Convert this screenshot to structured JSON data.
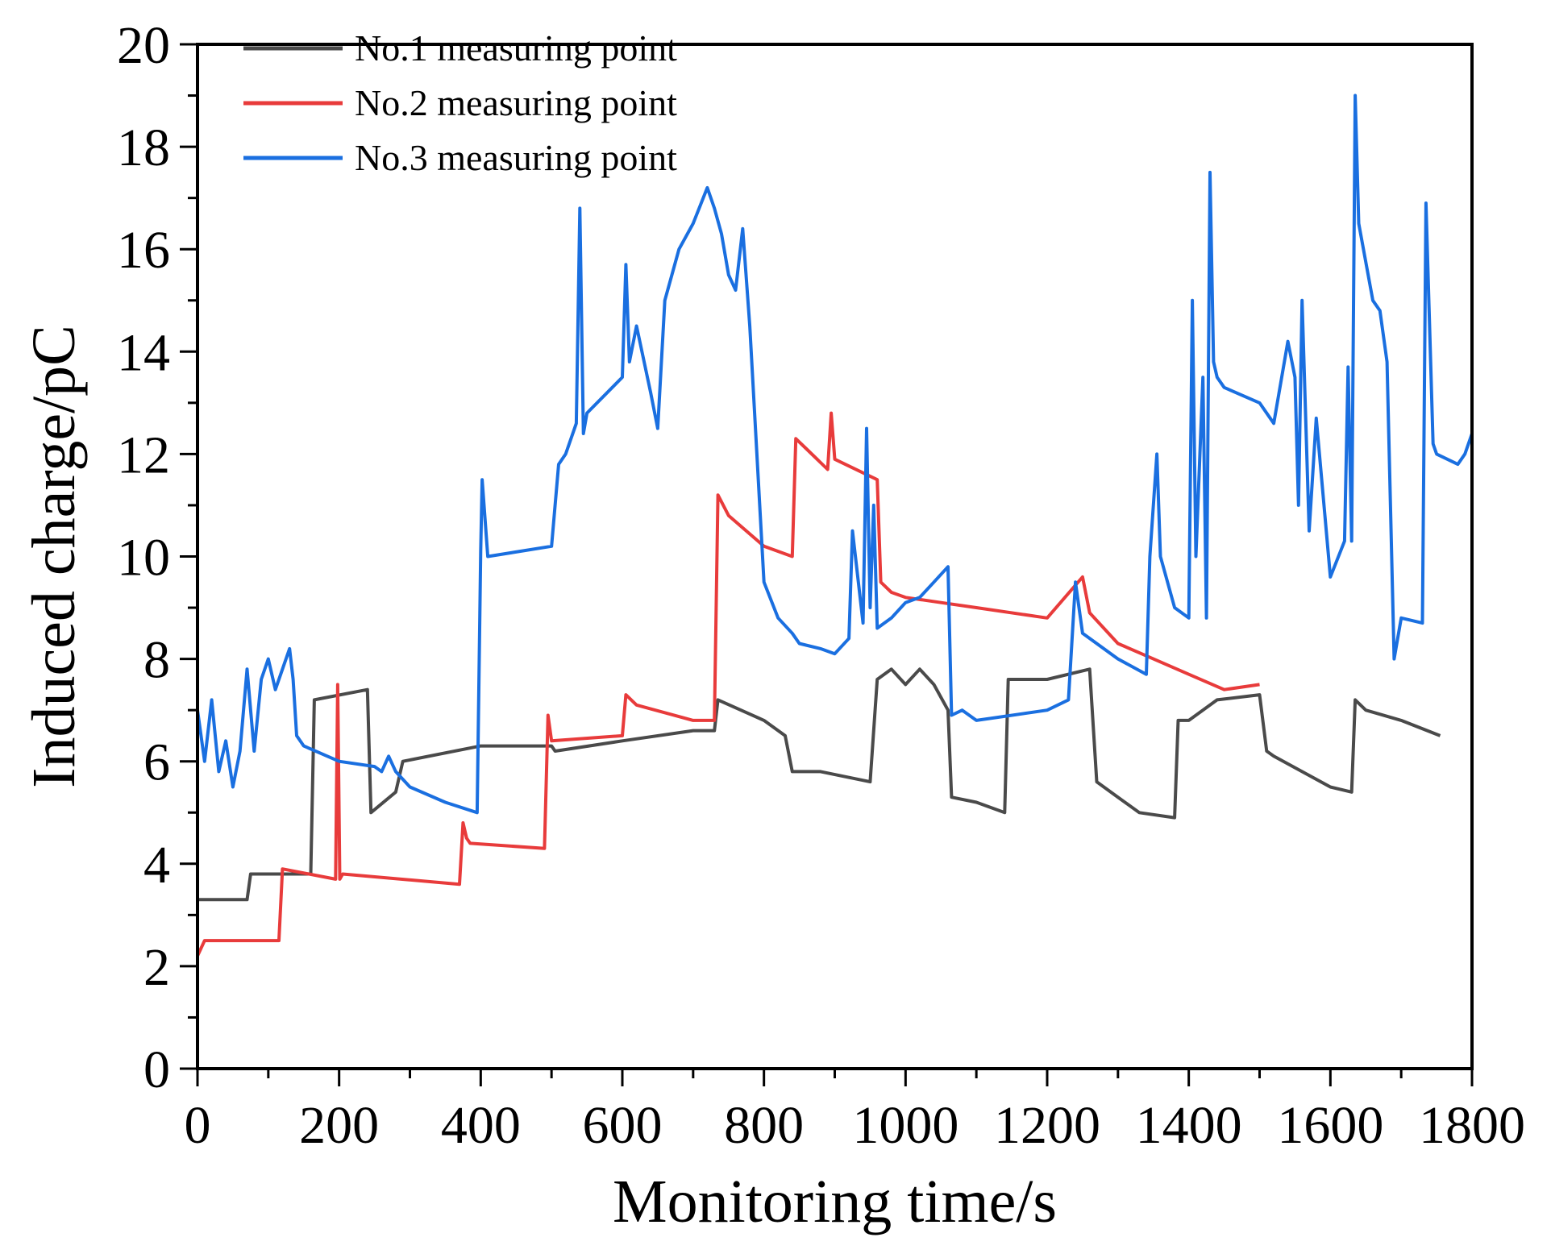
{
  "chart_data": {
    "type": "line",
    "title": "",
    "xlabel": "Monitoring time/s",
    "ylabel": "Induced charge/pC",
    "xlim": [
      0,
      1800
    ],
    "ylim": [
      0,
      20
    ],
    "x_ticks": [
      0,
      200,
      400,
      600,
      800,
      1000,
      1200,
      1400,
      1600,
      1800
    ],
    "y_ticks": [
      0,
      2,
      4,
      6,
      8,
      10,
      12,
      14,
      16,
      18,
      20
    ],
    "x_tick_labels": [
      "0",
      "200",
      "400",
      "600",
      "800",
      "1000",
      "1200",
      "1400",
      "1600",
      "1800"
    ],
    "y_tick_labels": [
      "0",
      "2",
      "4",
      "6",
      "8",
      "10",
      "12",
      "14",
      "16",
      "18",
      "20"
    ],
    "grid": false,
    "legend_position": "top-left",
    "series": [
      {
        "name": "No.1 measuring point",
        "color": "#4a4a4a",
        "x": [
          0,
          70,
          75,
          160,
          165,
          240,
          245,
          280,
          290,
          400,
          405,
          500,
          505,
          600,
          700,
          730,
          735,
          800,
          830,
          840,
          880,
          950,
          960,
          980,
          1000,
          1020,
          1040,
          1060,
          1065,
          1100,
          1140,
          1145,
          1200,
          1260,
          1270,
          1300,
          1330,
          1380,
          1385,
          1400,
          1440,
          1500,
          1510,
          1520,
          1560,
          1600,
          1630,
          1635,
          1650,
          1700,
          1755
        ],
        "y": [
          3.3,
          3.3,
          3.8,
          3.8,
          7.2,
          7.4,
          5.0,
          5.4,
          6.0,
          6.3,
          6.3,
          6.3,
          6.2,
          6.4,
          6.6,
          6.6,
          7.2,
          6.8,
          6.5,
          5.8,
          5.8,
          5.6,
          7.6,
          7.8,
          7.5,
          7.8,
          7.5,
          7.0,
          5.3,
          5.2,
          5.0,
          7.6,
          7.6,
          7.8,
          5.6,
          5.3,
          5.0,
          4.9,
          6.8,
          6.8,
          7.2,
          7.3,
          6.2,
          6.1,
          5.8,
          5.5,
          5.4,
          7.2,
          7.0,
          6.8,
          6.5
        ]
      },
      {
        "name": "No.2 measuring point",
        "color": "#e83b3b",
        "x": [
          0,
          10,
          115,
          120,
          195,
          198,
          201,
          205,
          370,
          375,
          380,
          385,
          490,
          495,
          500,
          600,
          605,
          620,
          700,
          730,
          735,
          750,
          800,
          840,
          845,
          860,
          890,
          895,
          900,
          960,
          965,
          980,
          1000,
          1050,
          1100,
          1200,
          1250,
          1260,
          1300,
          1350,
          1400,
          1450,
          1500
        ],
        "y": [
          2.2,
          2.5,
          2.5,
          3.9,
          3.7,
          7.5,
          3.7,
          3.8,
          3.6,
          4.8,
          4.5,
          4.4,
          4.3,
          6.9,
          6.4,
          6.5,
          7.3,
          7.1,
          6.8,
          6.8,
          11.2,
          10.8,
          10.2,
          10.0,
          12.3,
          12.1,
          11.7,
          12.8,
          11.9,
          11.5,
          9.5,
          9.3,
          9.2,
          9.1,
          9.0,
          8.8,
          9.6,
          8.9,
          8.3,
          8.0,
          7.7,
          7.4,
          7.5
        ]
      },
      {
        "name": "No.3 measuring point",
        "color": "#1a6fe0",
        "x": [
          0,
          10,
          20,
          30,
          40,
          50,
          60,
          70,
          80,
          90,
          100,
          110,
          120,
          130,
          135,
          140,
          150,
          200,
          250,
          260,
          270,
          280,
          300,
          350,
          395,
          400,
          402,
          410,
          500,
          510,
          520,
          535,
          540,
          545,
          550,
          600,
          605,
          610,
          620,
          640,
          650,
          660,
          680,
          700,
          720,
          730,
          740,
          750,
          760,
          770,
          780,
          790,
          800,
          820,
          840,
          850,
          880,
          900,
          920,
          925,
          940,
          945,
          950,
          955,
          960,
          980,
          1000,
          1020,
          1040,
          1060,
          1065,
          1080,
          1100,
          1200,
          1230,
          1240,
          1250,
          1300,
          1340,
          1345,
          1355,
          1360,
          1380,
          1400,
          1405,
          1410,
          1420,
          1425,
          1430,
          1435,
          1440,
          1450,
          1500,
          1520,
          1540,
          1550,
          1555,
          1560,
          1570,
          1580,
          1600,
          1620,
          1625,
          1630,
          1635,
          1640,
          1660,
          1670,
          1680,
          1690,
          1700,
          1730,
          1735,
          1745,
          1750,
          1780,
          1790,
          1800
        ],
        "y": [
          7.0,
          6.0,
          7.2,
          5.8,
          6.4,
          5.5,
          6.2,
          7.8,
          6.2,
          7.6,
          8.0,
          7.4,
          7.8,
          8.2,
          7.6,
          6.5,
          6.3,
          6.0,
          5.9,
          5.8,
          6.1,
          5.8,
          5.5,
          5.2,
          5.0,
          10.1,
          11.5,
          10.0,
          10.2,
          11.8,
          12.0,
          12.6,
          16.8,
          12.4,
          12.8,
          13.5,
          15.7,
          13.8,
          14.5,
          13.2,
          12.5,
          15.0,
          16.0,
          16.5,
          17.2,
          16.8,
          16.3,
          15.5,
          15.2,
          16.4,
          14.5,
          12.0,
          9.5,
          8.8,
          8.5,
          8.3,
          8.2,
          8.1,
          8.4,
          10.5,
          8.7,
          12.5,
          9.0,
          11.0,
          8.6,
          8.8,
          9.1,
          9.2,
          9.5,
          9.8,
          6.9,
          7.0,
          6.8,
          7.0,
          7.2,
          9.5,
          8.5,
          8.0,
          7.7,
          10.0,
          12.0,
          10.0,
          9.0,
          8.8,
          15.0,
          10.0,
          13.5,
          8.8,
          17.5,
          13.8,
          13.5,
          13.3,
          13.0,
          12.6,
          14.2,
          13.5,
          11.0,
          15.0,
          10.5,
          12.7,
          9.6,
          10.3,
          13.7,
          10.3,
          19.0,
          16.5,
          15.0,
          14.8,
          13.8,
          8.0,
          8.8,
          8.7,
          16.9,
          12.2,
          12.0,
          11.8,
          12.0,
          12.4
        ]
      }
    ]
  }
}
